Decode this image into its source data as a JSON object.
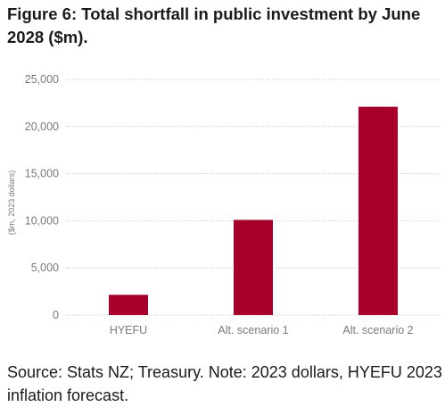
{
  "title": {
    "lead": "Figure 6:",
    "text": "Total shortfall in public investment by June 2028 ($m)."
  },
  "source_note": "Source: Stats NZ; Treasury. Note: 2023 dollars, HYEFU 2023 inflation forecast.",
  "chart_data": {
    "type": "bar",
    "categories": [
      "HYEFU",
      "Alt. scenario 1",
      "Alt. scenario 2"
    ],
    "values": [
      2150,
      10100,
      22100
    ],
    "ylabel": "($m, 2023 dollars)",
    "xlabel": "",
    "ylim": [
      0,
      25000
    ],
    "yticks": [
      0,
      5000,
      10000,
      15000,
      20000,
      25000
    ],
    "ytick_labels": [
      "0",
      "5,000",
      "10,000",
      "15,000",
      "20,000",
      "25,000"
    ],
    "grid": true,
    "grid_style": "dotted-horizontal",
    "bar_color": "#a6002a"
  }
}
